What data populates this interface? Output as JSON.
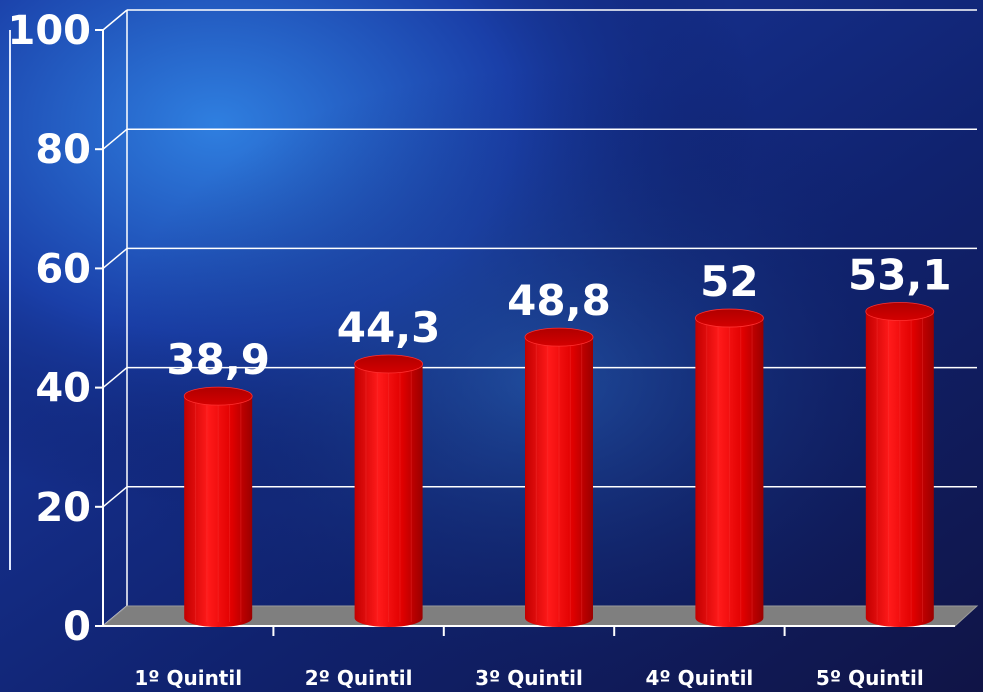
{
  "chart_data": {
    "type": "bar",
    "categories": [
      "1º Quintil",
      "2º Quintil",
      "3º Quintil",
      "4º Quintil",
      "5º Quintil"
    ],
    "values": [
      38.9,
      44.3,
      48.8,
      52,
      53.1
    ],
    "value_labels": [
      "38,9",
      "44,3",
      "48,8",
      "52",
      "53,1"
    ],
    "y_ticks": [
      "0",
      "20",
      "40",
      "60",
      "80",
      "100"
    ],
    "ylim": [
      0,
      100
    ],
    "grid": true,
    "bar_color": "#e60000",
    "background_color": "#0b1a5e"
  }
}
